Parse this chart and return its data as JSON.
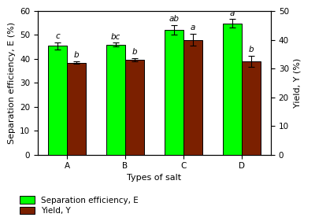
{
  "categories": [
    "A",
    "B",
    "C",
    "D"
  ],
  "separation_efficiency": [
    45.5,
    46.0,
    52.2,
    54.8
  ],
  "separation_efficiency_err": [
    1.5,
    0.8,
    2.0,
    1.8
  ],
  "yield": [
    32.0,
    33.0,
    40.0,
    32.5
  ],
  "yield_err": [
    0.4,
    0.6,
    2.0,
    2.0
  ],
  "separation_labels": [
    "c",
    "bc",
    "ab",
    "a"
  ],
  "yield_labels": [
    "b",
    "b",
    "a",
    "b"
  ],
  "bar_color_green": "#00FF00",
  "bar_color_brown": "#7B2000",
  "bar_edgecolor": "#000000",
  "xlabel": "Types of salt",
  "ylabel_left": "Separation efficiency, E (%)",
  "ylabel_right": "Yield, Y (%)",
  "ylim_left": [
    0,
    60
  ],
  "ylim_right": [
    0,
    50
  ],
  "yticks_left": [
    0,
    10,
    20,
    30,
    40,
    50,
    60
  ],
  "yticks_right": [
    0,
    10,
    20,
    30,
    40,
    50
  ],
  "legend_label_green": "Separation efficiency, E",
  "legend_label_brown": "Yield, Y",
  "background_color": "#ffffff",
  "bar_width": 0.32,
  "label_fontsize": 7.5,
  "axis_fontsize": 8,
  "annot_fontsize": 7.5
}
